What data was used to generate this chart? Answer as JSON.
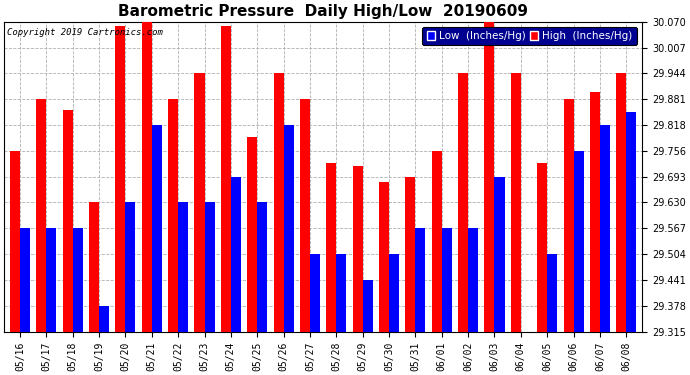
{
  "title": "Barometric Pressure  Daily High/Low  20190609",
  "copyright": "Copyright 2019 Cartronics.com",
  "legend_low": "Low  (Inches/Hg)",
  "legend_high": "High  (Inches/Hg)",
  "dates": [
    "05/16",
    "05/17",
    "05/18",
    "05/19",
    "05/20",
    "05/21",
    "05/22",
    "05/23",
    "05/24",
    "05/25",
    "05/26",
    "05/27",
    "05/28",
    "05/29",
    "05/30",
    "05/31",
    "06/01",
    "06/02",
    "06/03",
    "06/04",
    "06/05",
    "06/06",
    "06/07",
    "06/08"
  ],
  "high": [
    29.755,
    29.881,
    29.854,
    29.632,
    30.06,
    30.07,
    29.881,
    29.944,
    30.06,
    29.79,
    29.944,
    29.881,
    29.727,
    29.718,
    29.68,
    29.693,
    29.756,
    29.944,
    30.07,
    29.944,
    29.727,
    29.881,
    29.9,
    29.944
  ],
  "low": [
    29.567,
    29.567,
    29.567,
    29.378,
    29.63,
    29.818,
    29.63,
    29.63,
    29.693,
    29.63,
    29.818,
    29.504,
    29.504,
    29.441,
    29.504,
    29.567,
    29.567,
    29.567,
    29.693,
    29.315,
    29.504,
    29.756,
    29.818,
    29.851
  ],
  "ylim_min": 29.315,
  "ylim_max": 30.07,
  "yticks": [
    29.315,
    29.378,
    29.441,
    29.504,
    29.567,
    29.63,
    29.693,
    29.756,
    29.818,
    29.881,
    29.944,
    30.007,
    30.07
  ],
  "bar_width": 0.38,
  "color_high": "#ff0000",
  "color_low": "#0000ff",
  "background_color": "#ffffff",
  "plot_bg_color": "#ffffff",
  "grid_color": "#b0b0b0",
  "title_fontsize": 11,
  "tick_fontsize": 7,
  "legend_fontsize": 7.5,
  "legend_bg": "#000090"
}
